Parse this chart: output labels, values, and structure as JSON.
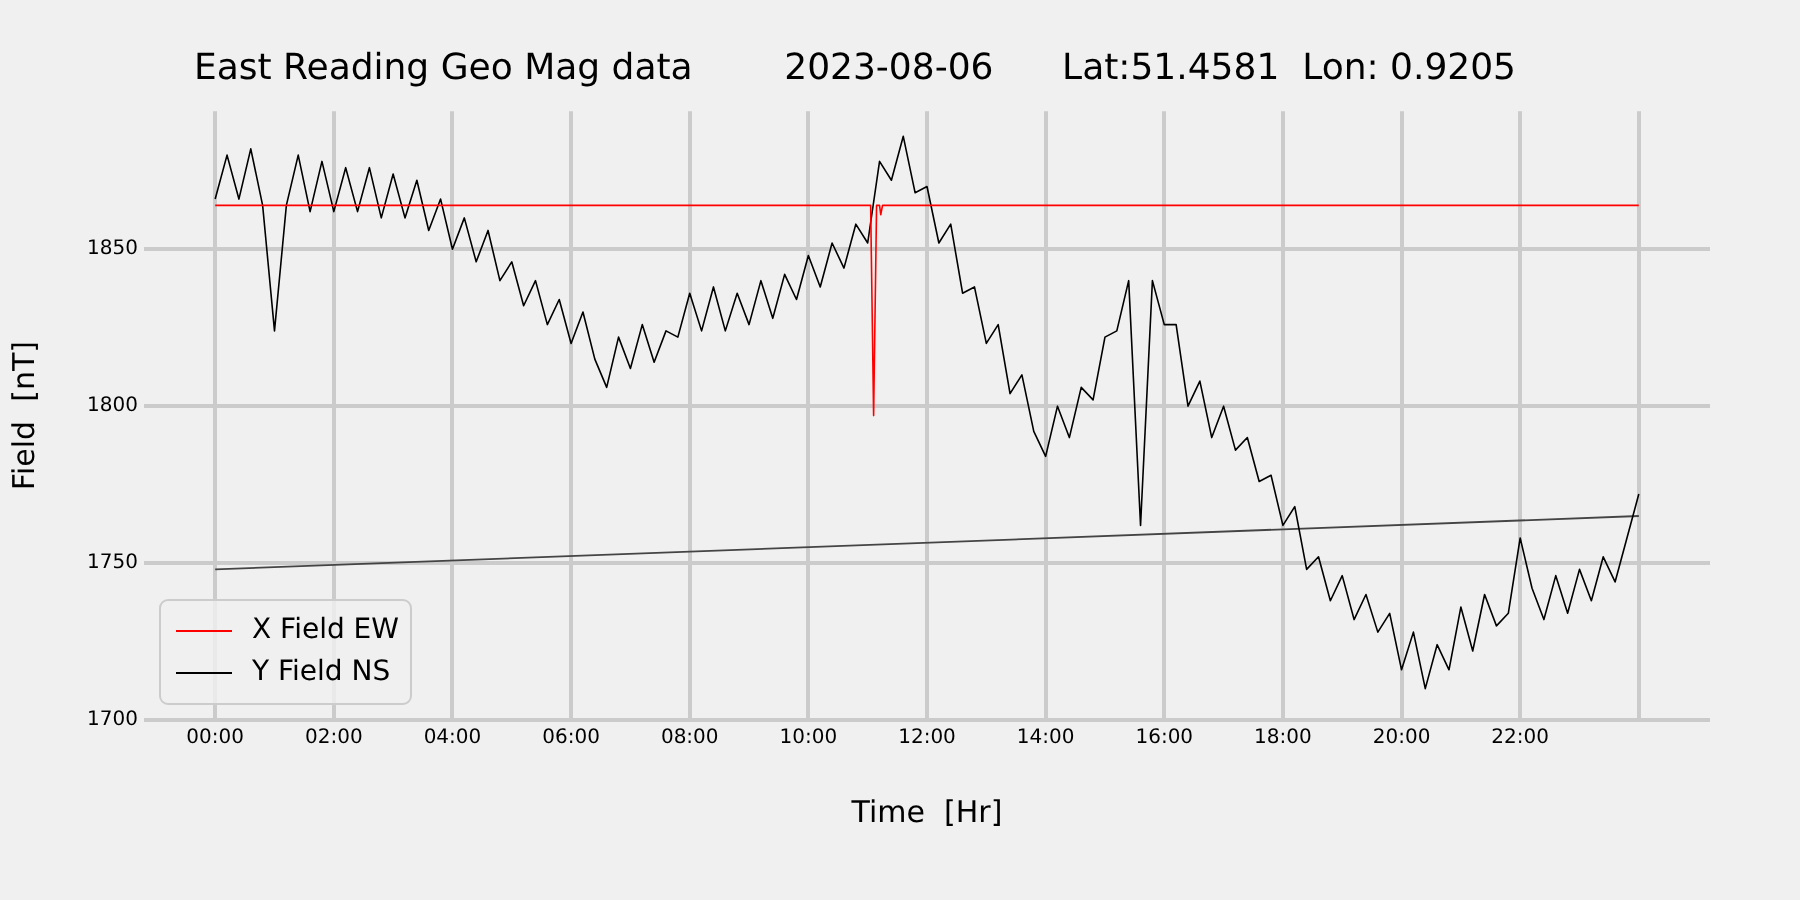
{
  "chart_data": {
    "type": "line",
    "title": "East Reading Geo Mag data        2023-08-06      Lat:51.4581  Lon: 0.9205",
    "xlabel": "Time  [Hr]",
    "ylabel": "Field  [nT]",
    "xlim": [
      -1.2,
      25.2
    ],
    "ylim": [
      1700,
      1894
    ],
    "xticks": [
      {
        "value": 0,
        "label": "00:00"
      },
      {
        "value": 2,
        "label": "02:00"
      },
      {
        "value": 4,
        "label": "04:00"
      },
      {
        "value": 6,
        "label": "06:00"
      },
      {
        "value": 8,
        "label": "08:00"
      },
      {
        "value": 10,
        "label": "10:00"
      },
      {
        "value": 12,
        "label": "12:00"
      },
      {
        "value": 14,
        "label": "14:00"
      },
      {
        "value": 16,
        "label": "16:00"
      },
      {
        "value": 18,
        "label": "18:00"
      },
      {
        "value": 20,
        "label": "20:00"
      },
      {
        "value": 22,
        "label": "22:00"
      },
      {
        "value": 24,
        "label": null
      }
    ],
    "yticks": [
      1700,
      1750,
      1800,
      1850
    ],
    "grid": true,
    "legend": "bottom left",
    "marker": "none",
    "line_style": "solid",
    "series": [
      {
        "name": "X Field EW",
        "color": "#ff0000",
        "x": [
          0,
          11.05,
          11.1,
          11.15,
          11.2,
          11.22,
          11.25,
          24
        ],
        "values": [
          1864,
          1864,
          1797,
          1864,
          1864,
          1861,
          1864,
          1864
        ]
      },
      {
        "name": "Y Field NS",
        "color": "#000000",
        "x": [
          0,
          0.2,
          0.4,
          0.6,
          0.8,
          1,
          1.2,
          1.4,
          1.6,
          1.8,
          2,
          2.2,
          2.4,
          2.6,
          2.8,
          3,
          3.2,
          3.4,
          3.6,
          3.8,
          4,
          4.2,
          4.4,
          4.6,
          4.8,
          5,
          5.2,
          5.4,
          5.6,
          5.8,
          6,
          6.2,
          6.4,
          6.6,
          6.8,
          7,
          7.2,
          7.4,
          7.6,
          7.8,
          8,
          8.2,
          8.4,
          8.6,
          8.8,
          9,
          9.2,
          9.4,
          9.6,
          9.8,
          10,
          10.2,
          10.4,
          10.6,
          10.8,
          11,
          11.2,
          11.4,
          11.6,
          11.8,
          12,
          12.2,
          12.4,
          12.6,
          12.8,
          13,
          13.2,
          13.4,
          13.6,
          13.8,
          14,
          14.2,
          14.4,
          14.6,
          14.8,
          15,
          15.2,
          15.4,
          15.6,
          15.8,
          16,
          16.2,
          16.4,
          16.6,
          16.8,
          17,
          17.2,
          17.4,
          17.6,
          17.8,
          18,
          18.2,
          18.4,
          18.6,
          18.8,
          19,
          19.2,
          19.4,
          19.6,
          19.8,
          20,
          20.2,
          20.4,
          20.6,
          20.8,
          21,
          21.2,
          21.4,
          21.6,
          21.8,
          22,
          22.2,
          22.4,
          22.6,
          22.8,
          23,
          23.2,
          23.4,
          23.6,
          23.8,
          24
        ],
        "values": [
          1866,
          1880,
          1866,
          1882,
          1864,
          1824,
          1864,
          1880,
          1862,
          1878,
          1862,
          1876,
          1862,
          1876,
          1860,
          1874,
          1860,
          1872,
          1856,
          1866,
          1850,
          1860,
          1846,
          1856,
          1840,
          1846,
          1832,
          1840,
          1826,
          1834,
          1820,
          1830,
          1815,
          1806,
          1822,
          1812,
          1826,
          1814,
          1824,
          1822,
          1836,
          1824,
          1838,
          1824,
          1836,
          1826,
          1840,
          1828,
          1842,
          1834,
          1848,
          1838,
          1852,
          1844,
          1858,
          1852,
          1878,
          1872,
          1886,
          1868,
          1870,
          1852,
          1858,
          1836,
          1838,
          1820,
          1826,
          1804,
          1810,
          1792,
          1784,
          1800,
          1790,
          1806,
          1802,
          1822,
          1824,
          1840,
          1762,
          1840,
          1826,
          1826,
          1800,
          1808,
          1790,
          1800,
          1786,
          1790,
          1776,
          1778,
          1762,
          1768,
          1748,
          1752,
          1738,
          1746,
          1732,
          1740,
          1728,
          1734,
          1716,
          1728,
          1710,
          1724,
          1716,
          1736,
          1722,
          1740,
          1730,
          1734,
          1758,
          1742,
          1732,
          1746,
          1734,
          1748,
          1738,
          1752,
          1744,
          1758,
          1772
        ]
      },
      {
        "color": "#444444",
        "x": [
          0,
          24
        ],
        "values": [
          1748,
          1765
        ]
      }
    ]
  }
}
